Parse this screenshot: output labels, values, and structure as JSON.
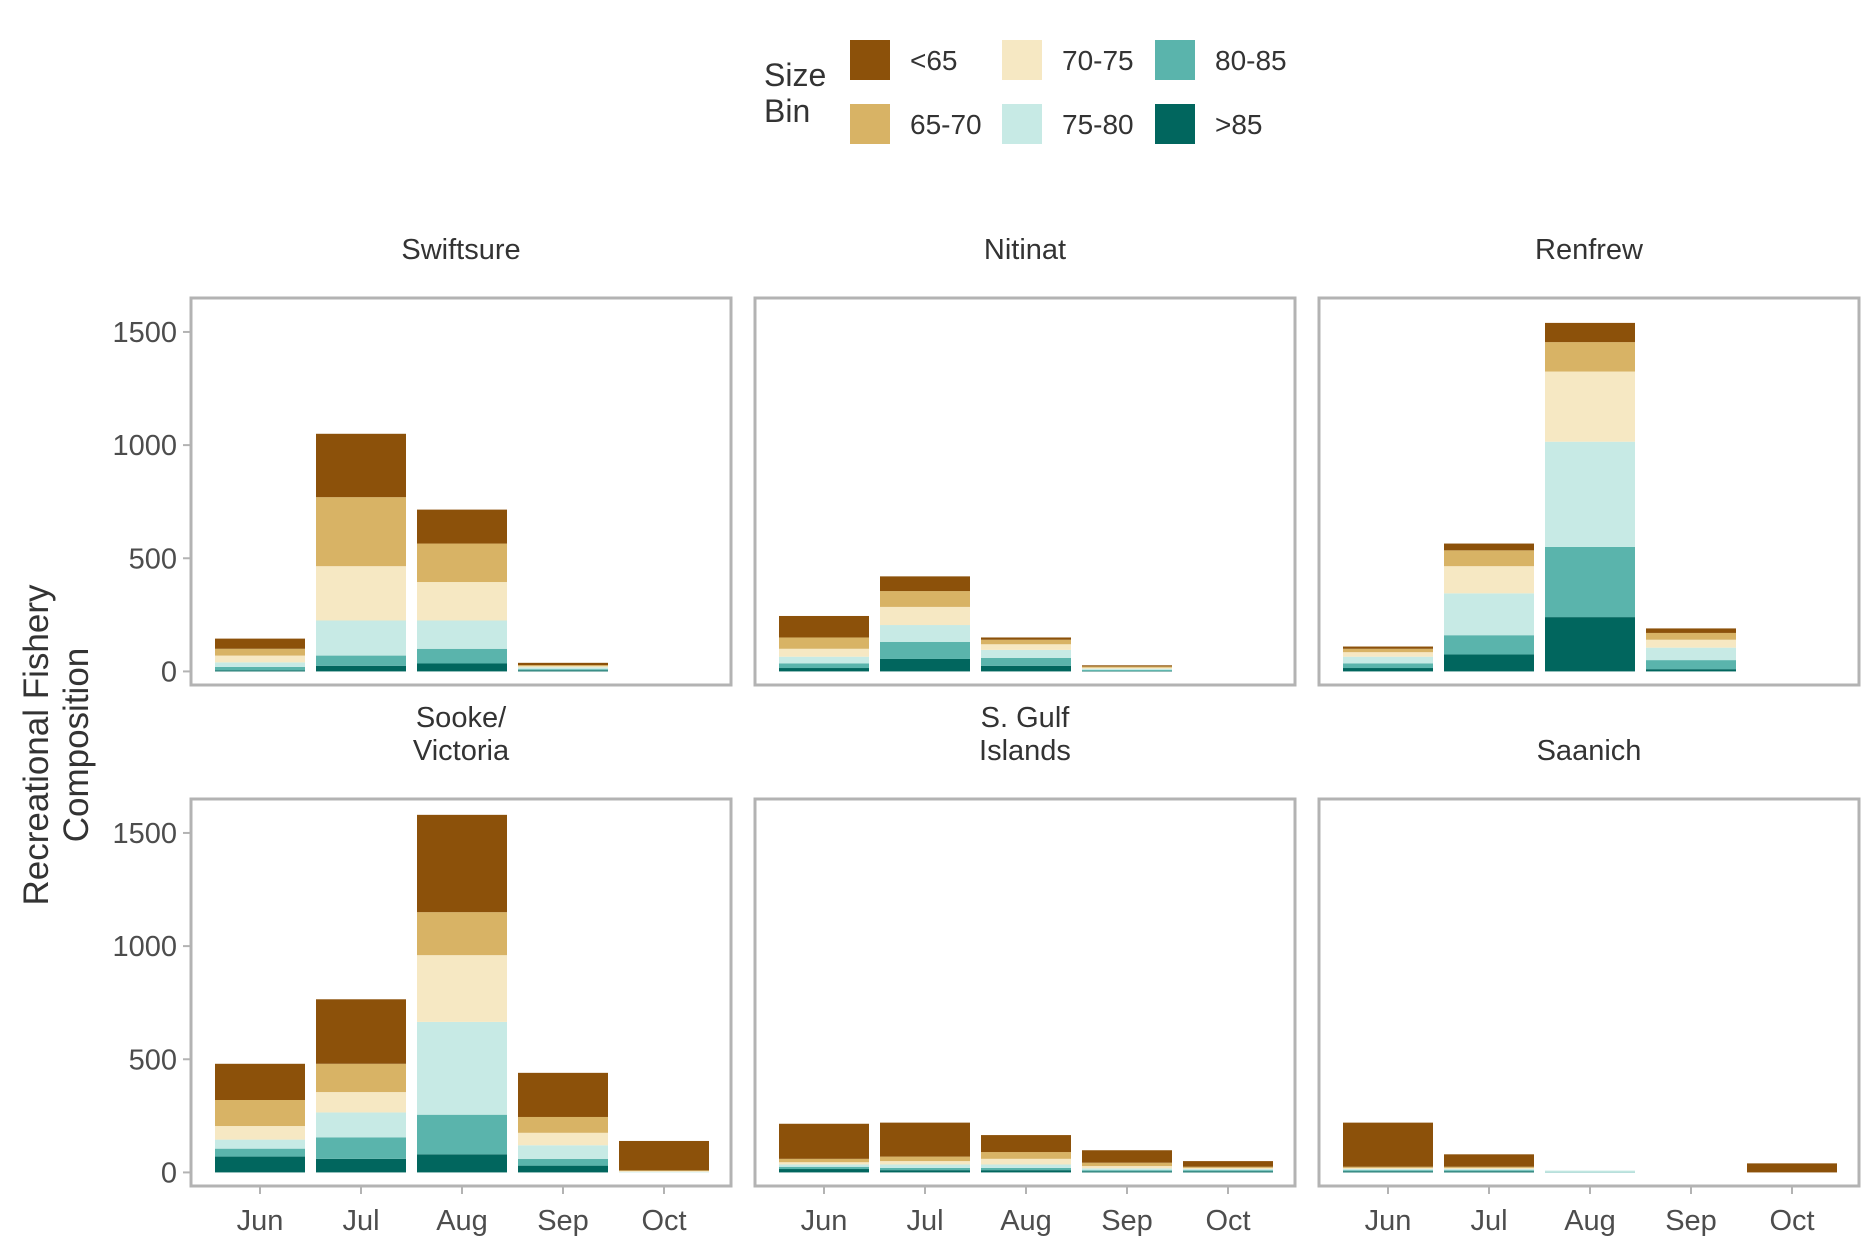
{
  "chart_data": {
    "type": "bar",
    "stacked": true,
    "ylabel": [
      "Recreational Fishery",
      "Composition"
    ],
    "ylim": [
      0,
      1650
    ],
    "yticks": [
      "0",
      "500",
      "1000",
      "1500"
    ],
    "categories": [
      "Jun",
      "Jul",
      "Aug",
      "Sep",
      "Oct"
    ],
    "legend": {
      "title": [
        "Size",
        "Bin"
      ],
      "position": "top"
    },
    "series": [
      {
        "name": ">85",
        "color": "#01665E"
      },
      {
        "name": "80-85",
        "color": "#5AB4AC"
      },
      {
        "name": "75-80",
        "color": "#C7EAE5"
      },
      {
        "name": "70-75",
        "color": "#F6E8C3"
      },
      {
        "name": "65-70",
        "color": "#D8B365"
      },
      {
        "name": "<65",
        "color": "#8C510A"
      }
    ],
    "panels": [
      {
        "title": [
          "Swiftsure"
        ],
        "values": [
          [
            5,
            25,
            35,
            5,
            0
          ],
          [
            15,
            45,
            65,
            5,
            0
          ],
          [
            20,
            155,
            125,
            8,
            0
          ],
          [
            30,
            240,
            170,
            5,
            0
          ],
          [
            30,
            305,
            170,
            5,
            0
          ],
          [
            45,
            280,
            150,
            10,
            0
          ]
        ]
      },
      {
        "title": [
          "Nitinat"
        ],
        "values": [
          [
            15,
            55,
            25,
            2,
            0
          ],
          [
            20,
            75,
            35,
            5,
            0
          ],
          [
            30,
            75,
            35,
            5,
            0
          ],
          [
            35,
            80,
            25,
            5,
            0
          ],
          [
            50,
            70,
            20,
            5,
            0
          ],
          [
            95,
            65,
            10,
            5,
            0
          ]
        ]
      },
      {
        "title": [
          "Renfrew"
        ],
        "values": [
          [
            15,
            75,
            240,
            10,
            0
          ],
          [
            20,
            85,
            310,
            40,
            0
          ],
          [
            30,
            185,
            465,
            55,
            0
          ],
          [
            20,
            120,
            310,
            35,
            0
          ],
          [
            15,
            70,
            130,
            30,
            0
          ],
          [
            10,
            30,
            85,
            20,
            0
          ]
        ]
      },
      {
        "title": [
          "Sooke/",
          "Victoria"
        ],
        "values": [
          [
            70,
            60,
            80,
            30,
            0
          ],
          [
            35,
            95,
            175,
            30,
            0
          ],
          [
            40,
            110,
            410,
            60,
            3
          ],
          [
            60,
            90,
            295,
            55,
            3
          ],
          [
            115,
            125,
            190,
            70,
            3
          ],
          [
            160,
            285,
            430,
            195,
            130
          ]
        ]
      },
      {
        "title": [
          "S. Gulf",
          "Islands"
        ],
        "values": [
          [
            15,
            10,
            10,
            5,
            5
          ],
          [
            10,
            10,
            10,
            5,
            5
          ],
          [
            10,
            15,
            15,
            8,
            5
          ],
          [
            10,
            15,
            25,
            10,
            5
          ],
          [
            15,
            20,
            30,
            15,
            5
          ],
          [
            155,
            150,
            75,
            55,
            25
          ]
        ]
      },
      {
        "title": [
          "Saanich"
        ],
        "values": [
          [
            5,
            5,
            0,
            0,
            0
          ],
          [
            5,
            5,
            3,
            0,
            0
          ],
          [
            5,
            5,
            5,
            0,
            0
          ],
          [
            5,
            5,
            0,
            0,
            0
          ],
          [
            5,
            5,
            0,
            0,
            0
          ],
          [
            195,
            55,
            0,
            0,
            40
          ]
        ]
      }
    ]
  }
}
